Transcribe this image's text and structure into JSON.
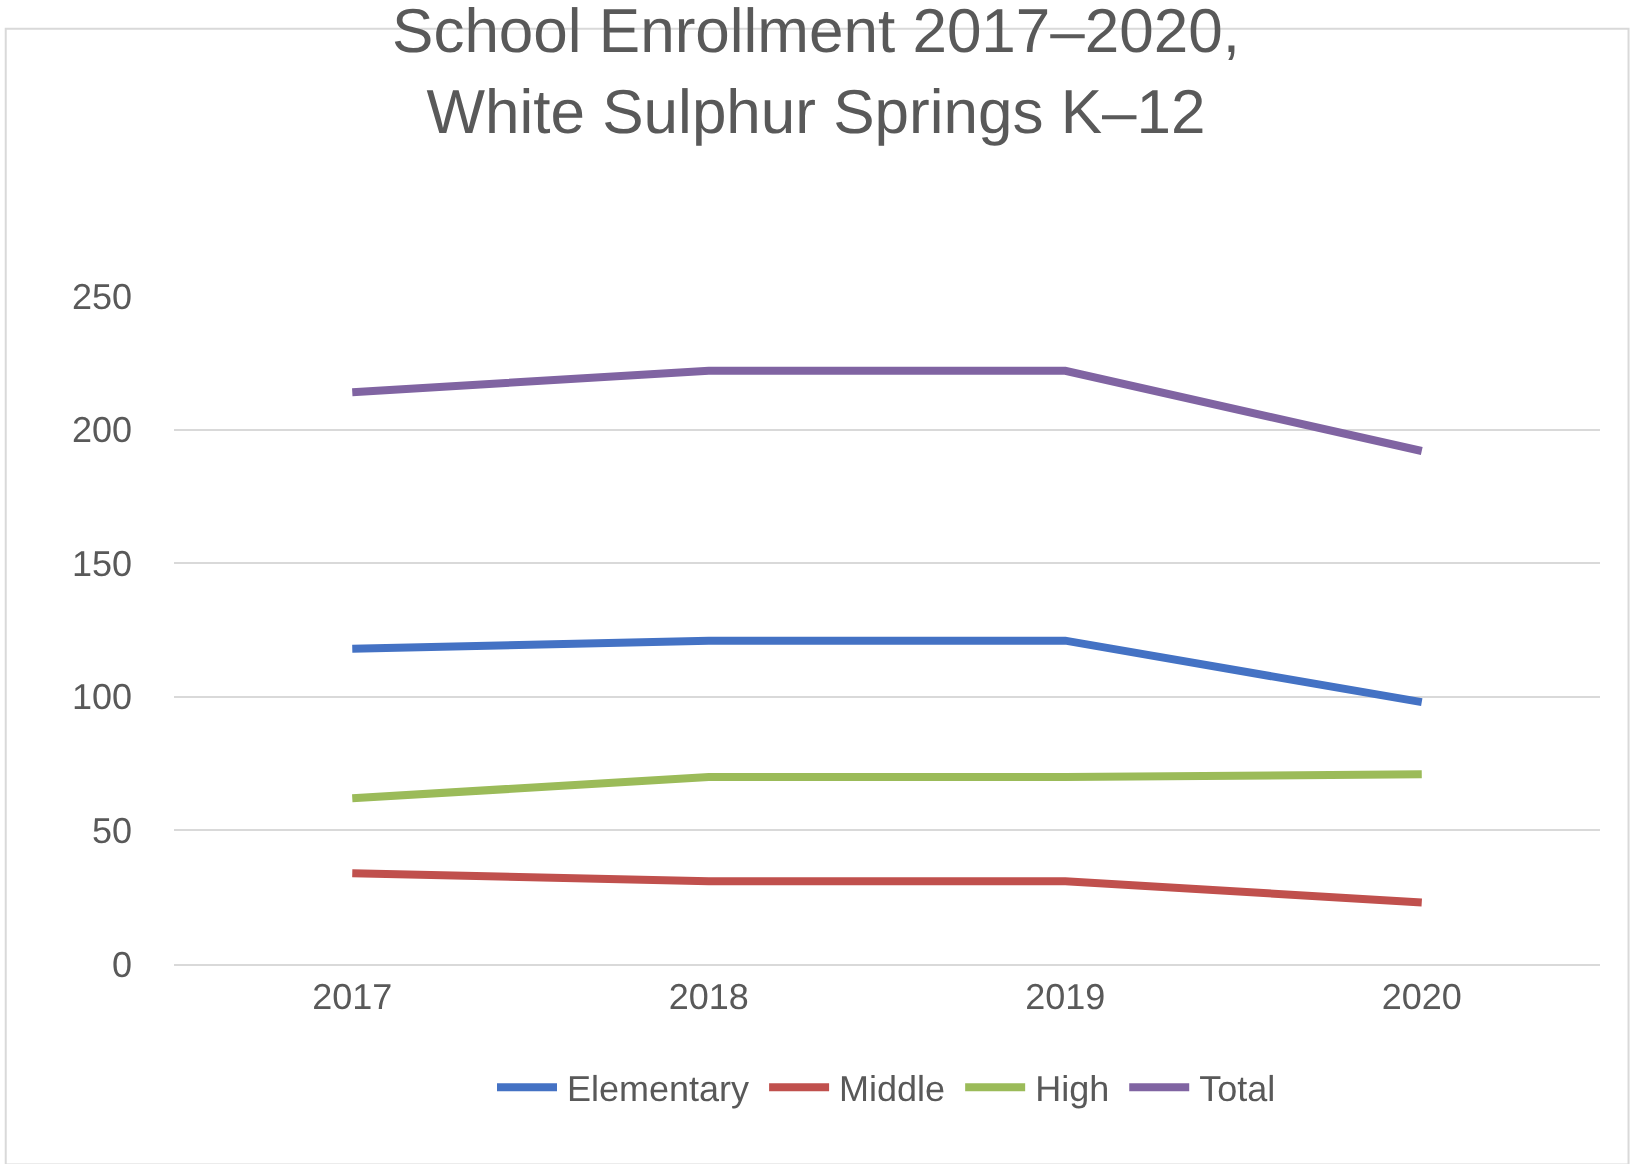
{
  "chart_data": {
    "type": "line",
    "title": "School Enrollment 2017–2020,\nWhite Sulphur Springs K–12",
    "categories": [
      "2017",
      "2018",
      "2019",
      "2020"
    ],
    "series": [
      {
        "name": "Elementary",
        "color": "#4472c4",
        "values": [
          118,
          121,
          121,
          98
        ]
      },
      {
        "name": "Middle",
        "color": "#c0504d",
        "values": [
          34,
          31,
          31,
          23
        ]
      },
      {
        "name": "High",
        "color": "#9bbb59",
        "values": [
          62,
          70,
          70,
          71
        ]
      },
      {
        "name": "Total",
        "color": "#8064a2",
        "values": [
          214,
          222,
          222,
          192
        ]
      }
    ],
    "ylim": [
      0,
      250
    ],
    "yticks": [
      0,
      50,
      100,
      150,
      200,
      250
    ],
    "grid": "y",
    "legend": "bottom",
    "marker": "none",
    "line_style": "solid"
  }
}
